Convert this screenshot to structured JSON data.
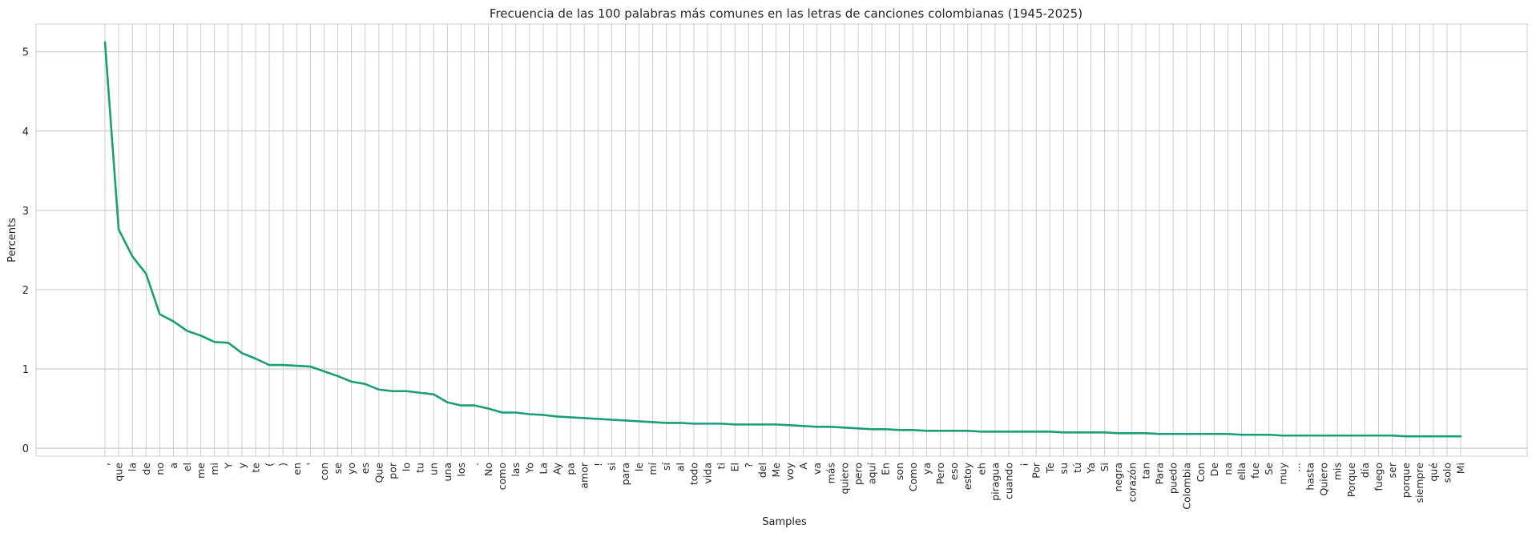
{
  "chart_data": {
    "type": "line",
    "title": "Frecuencia de las 100 palabras más comunes en las letras de canciones colombianas (1945-2025)",
    "xlabel": "Samples",
    "ylabel": "Percents",
    "ylim": [
      -0.1,
      5.35
    ],
    "yticks": [
      0,
      1,
      2,
      3,
      4,
      5
    ],
    "ytick_labels": [
      "0",
      "1",
      "2",
      "3",
      "4",
      "5"
    ],
    "grid": true,
    "line_color": "#1a9e75",
    "categories": [
      ",",
      "que",
      "la",
      "de",
      "no",
      "a",
      "el",
      "me",
      "mi",
      "Y",
      "y",
      "te",
      "(",
      ")",
      "en",
      "'",
      "con",
      "se",
      "yo",
      "es",
      "Que",
      "por",
      "lo",
      "tu",
      "un",
      "una",
      "los",
      ".",
      "No",
      "como",
      "las",
      "Yo",
      "La",
      "Ay",
      "pa",
      "amor",
      "!",
      "si",
      "para",
      "le",
      "mí",
      "sí",
      "al",
      "todo",
      "vida",
      "ti",
      "El",
      "?",
      "del",
      "Me",
      "voy",
      "A",
      "va",
      "más",
      "quiero",
      "pero",
      "aquí",
      "En",
      "son",
      "Como",
      "ya",
      "Pero",
      "eso",
      "estoy",
      "eh",
      "piragua",
      "cuando",
      "¡",
      "Por",
      "Te",
      "su",
      "tú",
      "Ya",
      "Si",
      "negra",
      "corazón",
      "tan",
      "Para",
      "puedo",
      "Colombia",
      "Con",
      "De",
      "na",
      "ella",
      "fue",
      "Se",
      "muy",
      "...",
      "hasta",
      "Quiero",
      "mis",
      "Porque",
      "día",
      "fuego",
      "ser",
      "porque",
      "siempre",
      "qué",
      "solo",
      "Mi"
    ],
    "values": [
      5.12,
      2.76,
      2.42,
      2.2,
      1.69,
      1.6,
      1.48,
      1.42,
      1.34,
      1.33,
      1.2,
      1.13,
      1.05,
      1.05,
      1.04,
      1.03,
      0.97,
      0.91,
      0.84,
      0.81,
      0.74,
      0.72,
      0.72,
      0.7,
      0.68,
      0.58,
      0.54,
      0.54,
      0.5,
      0.45,
      0.45,
      0.43,
      0.42,
      0.4,
      0.39,
      0.38,
      0.37,
      0.36,
      0.35,
      0.34,
      0.33,
      0.32,
      0.32,
      0.31,
      0.31,
      0.31,
      0.3,
      0.3,
      0.3,
      0.3,
      0.29,
      0.28,
      0.27,
      0.27,
      0.26,
      0.25,
      0.24,
      0.24,
      0.23,
      0.23,
      0.22,
      0.22,
      0.22,
      0.22,
      0.21,
      0.21,
      0.21,
      0.21,
      0.21,
      0.21,
      0.2,
      0.2,
      0.2,
      0.2,
      0.19,
      0.19,
      0.19,
      0.18,
      0.18,
      0.18,
      0.18,
      0.18,
      0.18,
      0.17,
      0.17,
      0.17,
      0.16,
      0.16,
      0.16,
      0.16,
      0.16,
      0.16,
      0.16,
      0.16,
      0.16,
      0.15,
      0.15,
      0.15,
      0.15,
      0.15
    ]
  }
}
